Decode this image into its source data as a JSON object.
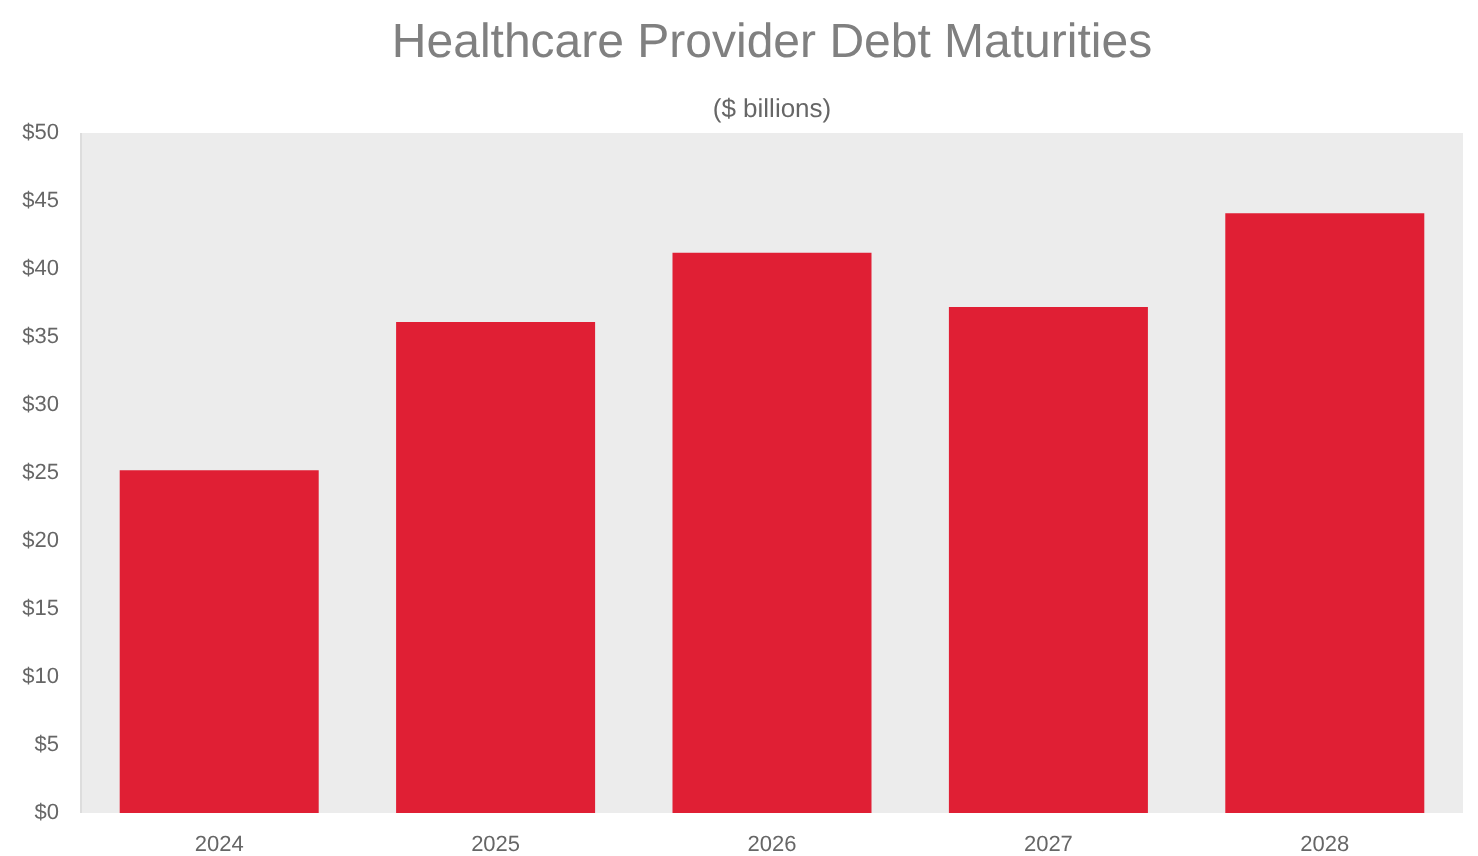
{
  "chart_data": {
    "type": "bar",
    "title": "Healthcare Provider Debt Maturities",
    "subtitle": "($ billions)",
    "categories": [
      "2024",
      "2025",
      "2026",
      "2027",
      "2028"
    ],
    "values": [
      25.2,
      36.1,
      41.2,
      37.2,
      44.1
    ],
    "color": "#e01f34",
    "ylim": [
      0,
      50
    ],
    "yticks": [
      {
        "value": 0,
        "label": "$0"
      },
      {
        "value": 5,
        "label": "$5"
      },
      {
        "value": 10,
        "label": "$10"
      },
      {
        "value": 15,
        "label": "$15"
      },
      {
        "value": 20,
        "label": "$20"
      },
      {
        "value": 25,
        "label": "$25"
      },
      {
        "value": 30,
        "label": "$30"
      },
      {
        "value": 35,
        "label": "$35"
      },
      {
        "value": 40,
        "label": "$40"
      },
      {
        "value": 45,
        "label": "$45"
      },
      {
        "value": 50,
        "label": "$50"
      }
    ],
    "grid": false
  }
}
